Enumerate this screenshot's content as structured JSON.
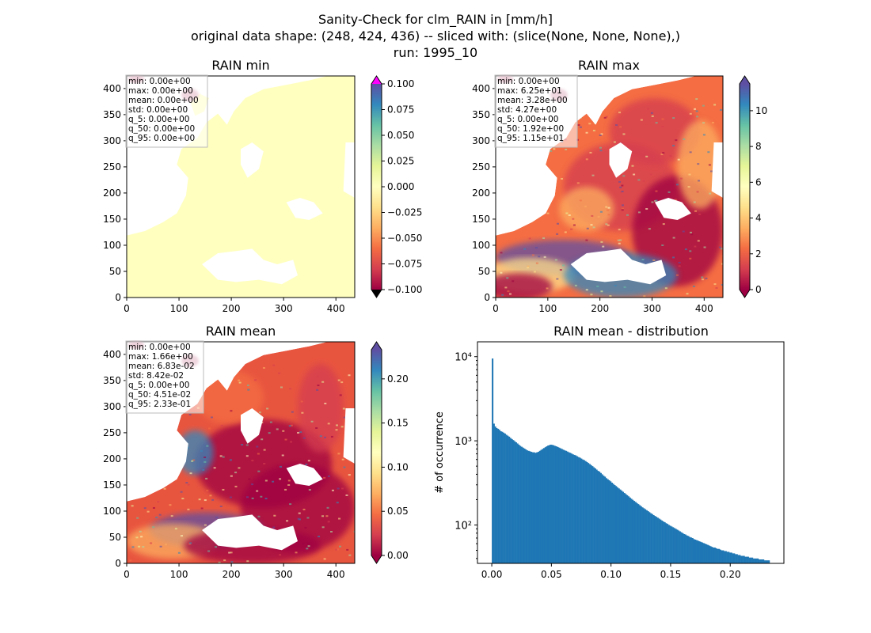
{
  "figure": {
    "title_lines": [
      "Sanity-Check for clm_RAIN in [mm/h]",
      "original data shape: (248, 424, 436) -- sliced with: (slice(None, None, None),)",
      "run: 1995_10"
    ]
  },
  "colors": {
    "spectral": [
      "#9e0142",
      "#d53e4f",
      "#f46d43",
      "#fdae61",
      "#fee08b",
      "#ffffbf",
      "#e6f598",
      "#abdda4",
      "#66c2a5",
      "#3288bd",
      "#5e4fa2"
    ],
    "under": "#000000",
    "over_min_panel": "#ff00ff",
    "hist_bar": "#1f77b4"
  },
  "chart_data": [
    {
      "type": "heatmap",
      "title": "RAIN min",
      "x_ticks": [
        "0",
        "100",
        "200",
        "300",
        "400"
      ],
      "y_ticks": [
        "0",
        "50",
        "100",
        "150",
        "200",
        "250",
        "300",
        "350",
        "400"
      ],
      "xlim": [
        0,
        436
      ],
      "ylim": [
        0,
        424
      ],
      "colorbar": {
        "vmin": -0.1,
        "vmax": 0.1,
        "extend": "both",
        "ticks": [
          "−0.100",
          "−0.075",
          "−0.050",
          "−0.025",
          "0.000",
          "0.025",
          "0.050",
          "0.075",
          "0.100"
        ]
      },
      "stats": [
        "min: 0.00e+00",
        "max: 0.00e+00",
        "mean: 0.00e+00",
        "std: 0.00e+00",
        "q_5: 0.00e+00",
        "q_50: 0.00e+00",
        "q_95: 0.00e+00"
      ]
    },
    {
      "type": "heatmap",
      "title": "RAIN max",
      "x_ticks": [
        "0",
        "100",
        "200",
        "300",
        "400"
      ],
      "y_ticks": [
        "0",
        "50",
        "100",
        "150",
        "200",
        "250",
        "300",
        "350",
        "400"
      ],
      "xlim": [
        0,
        436
      ],
      "ylim": [
        0,
        424
      ],
      "colorbar": {
        "vmin": 0,
        "vmax": 11.5,
        "extend": "both",
        "ticks": [
          "0",
          "2",
          "4",
          "6",
          "8",
          "10"
        ]
      },
      "stats": [
        "min: 0.00e+00",
        "max: 6.25e+01",
        "mean: 3.28e+00",
        "std: 4.27e+00",
        "q_5: 0.00e+00",
        "q_50: 1.92e+00",
        "q_95: 1.15e+01"
      ]
    },
    {
      "type": "heatmap",
      "title": "RAIN mean",
      "x_ticks": [
        "0",
        "100",
        "200",
        "300",
        "400"
      ],
      "y_ticks": [
        "0",
        "50",
        "100",
        "150",
        "200",
        "250",
        "300",
        "350",
        "400"
      ],
      "xlim": [
        0,
        436
      ],
      "ylim": [
        0,
        424
      ],
      "colorbar": {
        "vmin": 0,
        "vmax": 0.233,
        "extend": "both",
        "ticks": [
          "0.00",
          "0.05",
          "0.10",
          "0.15",
          "0.20"
        ]
      },
      "stats": [
        "min: 0.00e+00",
        "max: 1.66e+00",
        "mean: 6.83e-02",
        "std: 8.42e-02",
        "q_5: 0.00e+00",
        "q_50: 4.51e-02",
        "q_95: 2.33e-01"
      ]
    },
    {
      "type": "bar",
      "title": "RAIN mean - distribution",
      "ylabel": "# of occurrence",
      "yscale": "log",
      "xlim": [
        -0.012,
        0.245
      ],
      "ylim": [
        35,
        15000
      ],
      "x_ticks": [
        0.0,
        0.05,
        0.1,
        0.15,
        0.2
      ],
      "x_tick_labels": [
        "0.00",
        "0.05",
        "0.10",
        "0.15",
        "0.20"
      ],
      "y_tick_values": [
        100,
        1000,
        10000
      ],
      "y_tick_labels": [
        "10²",
        "10³",
        "10⁴"
      ],
      "bin_range": [
        0,
        0.233
      ],
      "bin_count": 200,
      "counts": [
        9500,
        1600,
        1480,
        1420,
        1390,
        1350,
        1300,
        1280,
        1250,
        1220,
        1180,
        1150,
        1120,
        1080,
        1050,
        1020,
        990,
        960,
        930,
        900,
        870,
        850,
        830,
        810,
        790,
        770,
        760,
        750,
        740,
        730,
        730,
        720,
        730,
        740,
        760,
        780,
        800,
        820,
        840,
        860,
        880,
        890,
        900,
        895,
        885,
        870,
        860,
        845,
        830,
        815,
        800,
        785,
        770,
        760,
        745,
        730,
        720,
        705,
        690,
        680,
        670,
        655,
        640,
        630,
        615,
        600,
        590,
        575,
        560,
        545,
        530,
        515,
        500,
        485,
        470,
        455,
        440,
        430,
        415,
        400,
        385,
        375,
        360,
        350,
        340,
        330,
        318,
        308,
        298,
        290,
        280,
        272,
        264,
        256,
        248,
        240,
        233,
        226,
        219,
        212,
        205,
        199,
        193,
        188,
        182,
        177,
        172,
        167,
        162,
        158,
        154,
        150,
        146,
        142,
        138,
        135,
        131,
        128,
        125,
        122,
        119,
        116,
        113,
        110,
        108,
        105,
        103,
        100,
        98,
        96,
        94,
        92,
        90,
        88,
        86,
        84,
        82,
        80,
        78,
        77,
        75,
        74,
        72,
        71,
        70,
        68,
        67,
        66,
        65,
        64,
        63,
        62,
        61,
        60,
        59,
        58,
        57,
        56,
        55,
        54,
        54,
        53,
        52,
        52,
        51,
        50,
        50,
        49,
        49,
        48,
        48,
        47,
        47,
        46,
        46,
        45,
        45,
        44,
        44,
        43,
        43,
        43,
        42,
        42,
        42,
        41,
        41,
        41,
        40,
        40,
        40,
        40,
        39,
        39,
        39,
        39,
        38,
        38,
        38,
        38
      ]
    }
  ]
}
